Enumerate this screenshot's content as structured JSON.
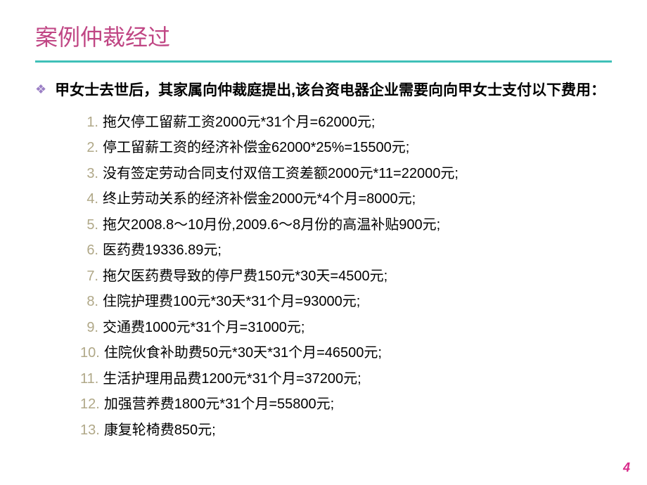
{
  "title": "案例仲裁经过",
  "intro": "甲女士去世后，其家属向仲裁庭提出,该台资电器企业需要向向甲女士支付以下费用：",
  "items": [
    {
      "num": "1.",
      "text": "拖欠停工留薪工资2000元*31个月=62000元;"
    },
    {
      "num": "2.",
      "text": "停工留薪工资的经济补偿金62000*25%=15500元;"
    },
    {
      "num": "3.",
      "text": "没有签定劳动合同支付双倍工资差额2000元*11=22000元;"
    },
    {
      "num": "4.",
      "text": "终止劳动关系的经济补偿金2000元*4个月=8000元;"
    },
    {
      "num": "5.",
      "text": "拖欠2008.8～10月份,2009.6～8月份的高温补贴900元;"
    },
    {
      "num": "6.",
      "text": "医药费19336.89元;"
    },
    {
      "num": "7.",
      "text": "拖欠医药费导致的停尸费150元*30天=4500元;"
    },
    {
      "num": "8.",
      "text": "住院护理费100元*30天*31个月=93000元;"
    },
    {
      "num": "9.",
      "text": "交通费1000元*31个月=31000元;"
    },
    {
      "num": "10.",
      "text": "住院伙食补助费50元*30天*31个月=46500元;"
    },
    {
      "num": "11.",
      "text": "生活护理用品费1200元*31个月=37200元;"
    },
    {
      "num": "12.",
      "text": "加强营养费1800元*31个月=55800元;"
    },
    {
      "num": "13.",
      "text": "康复轮椅费850元;"
    }
  ],
  "pageNumber": "4",
  "colors": {
    "title": "#c04684",
    "divider": "#3fc0b8",
    "bullet": "#9b7fc5",
    "listNumber": "#b0a888",
    "text": "#000000",
    "pageNumber": "#d82a8a",
    "background": "#ffffff"
  },
  "typography": {
    "titleFontSize": 32,
    "introFontSize": 21,
    "listFontSize": 20,
    "pageNumFontSize": 18
  }
}
